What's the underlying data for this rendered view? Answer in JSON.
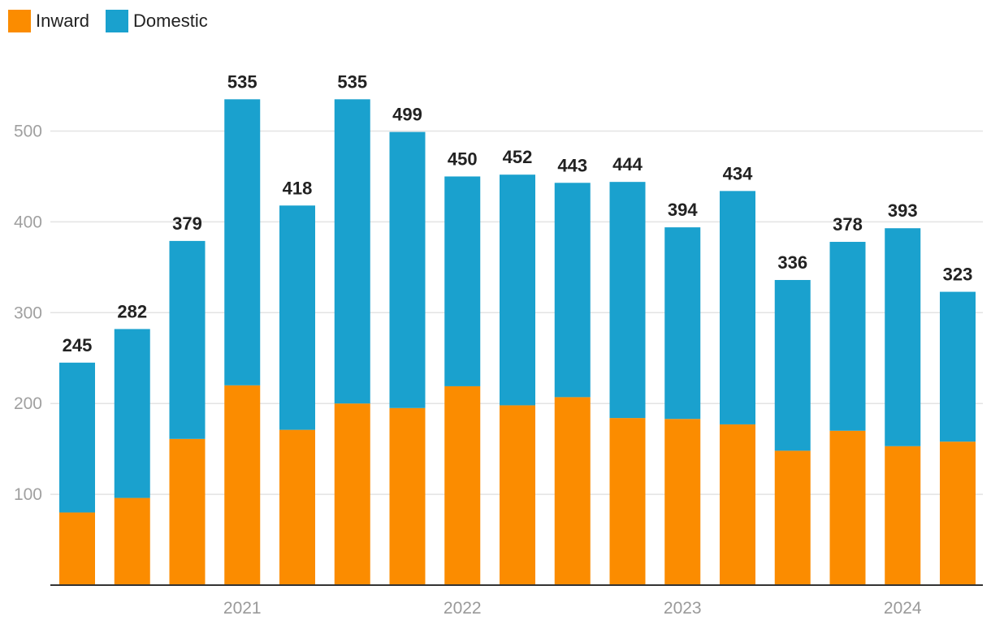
{
  "chart_data": {
    "type": "bar",
    "stacked": true,
    "title": "",
    "xlabel": "",
    "ylabel": "",
    "ylim": [
      0,
      560
    ],
    "yticks": [
      100,
      200,
      300,
      400,
      500
    ],
    "x_year_labels": [
      {
        "label": "2021",
        "index": 3
      },
      {
        "label": "2022",
        "index": 7
      },
      {
        "label": "2023",
        "index": 11
      },
      {
        "label": "2024",
        "index": 15
      }
    ],
    "series": [
      {
        "name": "Inward",
        "color": "#FB8C00",
        "values": [
          80,
          96,
          161,
          220,
          171,
          200,
          195,
          219,
          198,
          207,
          184,
          183,
          177,
          148,
          170,
          153,
          158
        ]
      },
      {
        "name": "Domestic",
        "color": "#1AA1CE",
        "values": [
          165,
          186,
          218,
          315,
          247,
          335,
          304,
          231,
          254,
          236,
          260,
          211,
          257,
          188,
          208,
          240,
          165
        ]
      }
    ],
    "totals": [
      245,
      282,
      379,
      535,
      418,
      535,
      499,
      450,
      452,
      443,
      444,
      394,
      434,
      336,
      378,
      393,
      323
    ],
    "legend_position": "top-left",
    "grid": true
  }
}
